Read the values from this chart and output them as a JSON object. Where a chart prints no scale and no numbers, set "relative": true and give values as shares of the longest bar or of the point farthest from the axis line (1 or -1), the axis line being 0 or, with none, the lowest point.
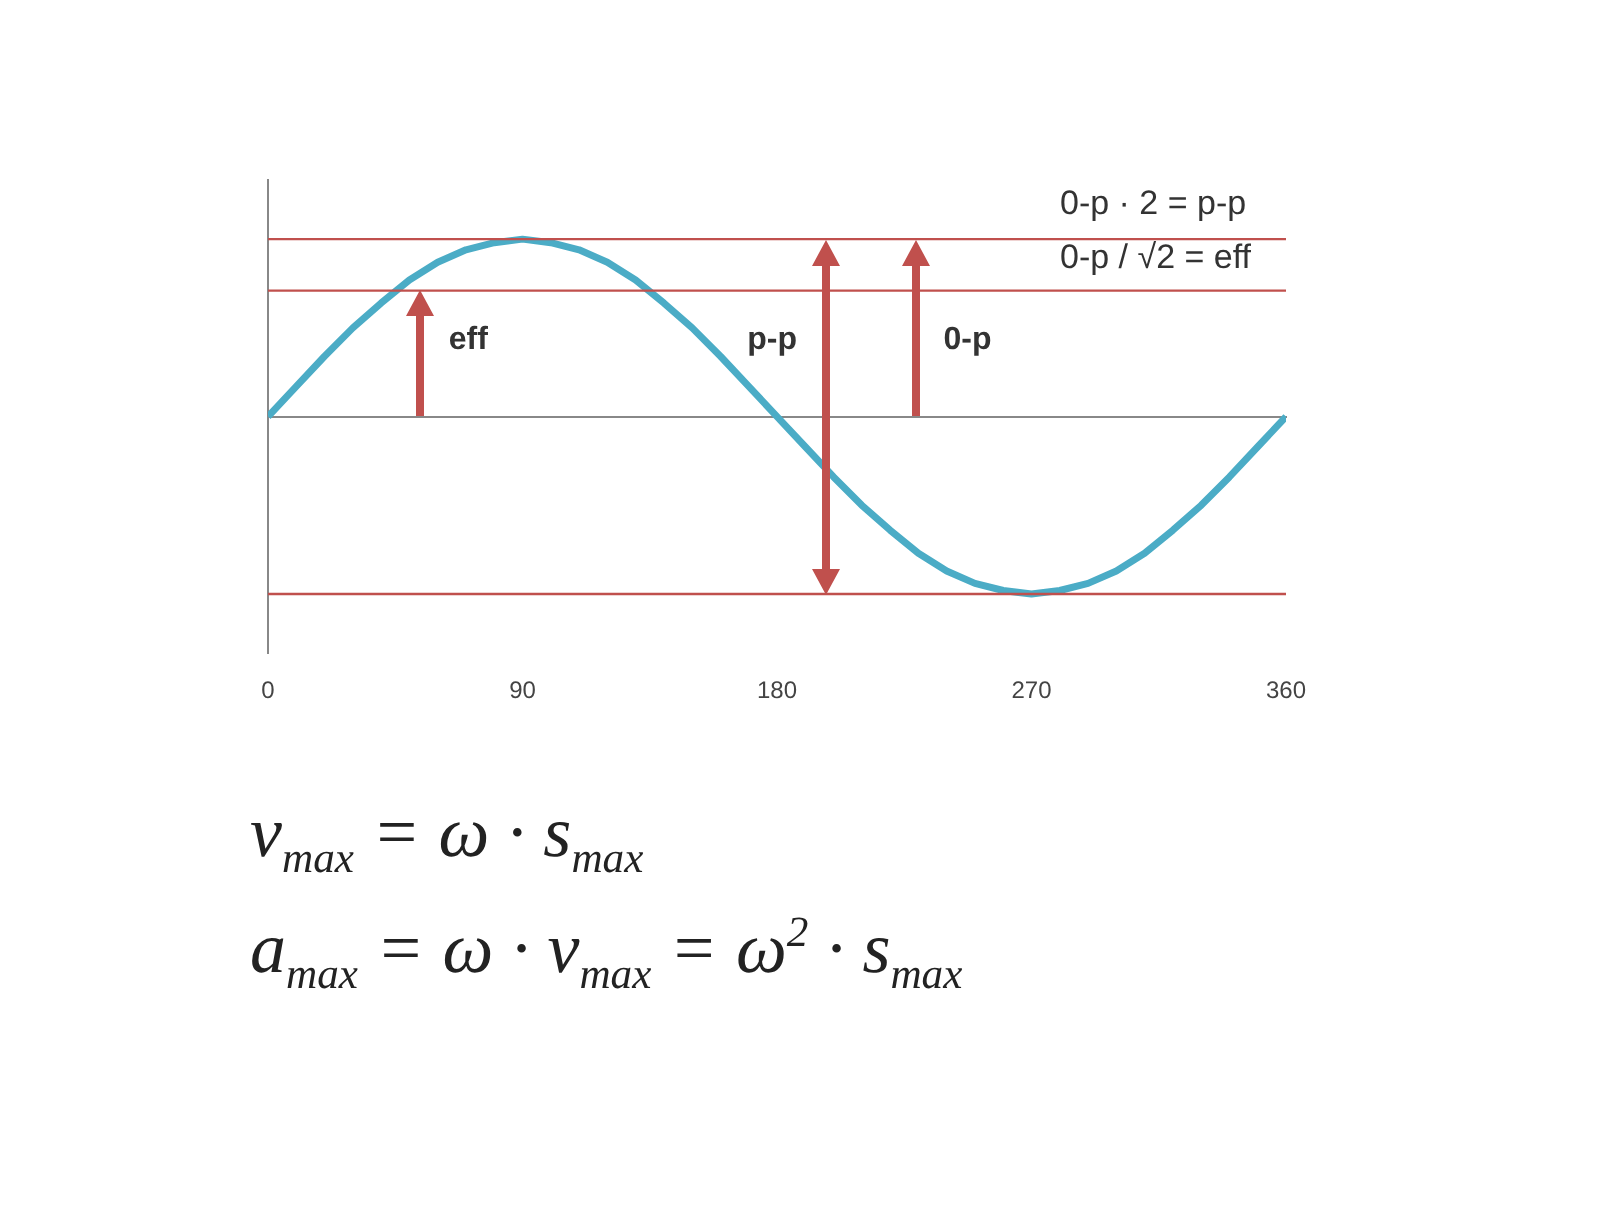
{
  "chart_data": {
    "type": "line",
    "relative": true,
    "x": [
      0,
      10,
      20,
      30,
      40,
      50,
      60,
      70,
      80,
      90,
      100,
      110,
      120,
      130,
      140,
      150,
      160,
      170,
      180,
      190,
      200,
      210,
      220,
      230,
      240,
      250,
      260,
      270,
      280,
      290,
      300,
      310,
      320,
      330,
      340,
      350,
      360
    ],
    "series": [
      {
        "color": "#4bacc6",
        "values": [
          0,
          0.17,
          0.34,
          0.5,
          0.64,
          0.77,
          0.87,
          0.94,
          0.98,
          1,
          0.98,
          0.94,
          0.87,
          0.77,
          0.64,
          0.5,
          0.34,
          0.17,
          0,
          -0.17,
          -0.34,
          -0.5,
          -0.64,
          -0.77,
          -0.87,
          -0.94,
          -0.98,
          -1,
          -0.98,
          -0.94,
          -0.87,
          -0.77,
          -0.64,
          -0.5,
          -0.34,
          -0.17,
          0
        ]
      }
    ],
    "xlim": [
      0,
      360
    ],
    "xticks": [
      0,
      90,
      180,
      270,
      360
    ],
    "ref_lines": [
      {
        "axis": "y",
        "value": 1,
        "color": "#c0504d"
      },
      {
        "axis": "y",
        "value": 0.71,
        "color": "#c0504d"
      },
      {
        "axis": "y",
        "value": -1,
        "color": "#c0504d"
      }
    ],
    "annotations": [
      {
        "text": "eff",
        "x": 54,
        "y": 0.71
      },
      {
        "text": "p-p",
        "x": 197,
        "y": 1
      },
      {
        "text": "0-p",
        "x": 229,
        "y": 1
      },
      "0-p · 2 = p-p",
      "0-p / √2 = eff",
      "v$_{max}$ = ω · s$_{max}$",
      "a$_{max}$ = ω · v$_{max}$ = ω$^{2}$ · s$_{max}$"
    ],
    "grid": false,
    "legend": false,
    "marker": "none",
    "line_style": "solid"
  }
}
